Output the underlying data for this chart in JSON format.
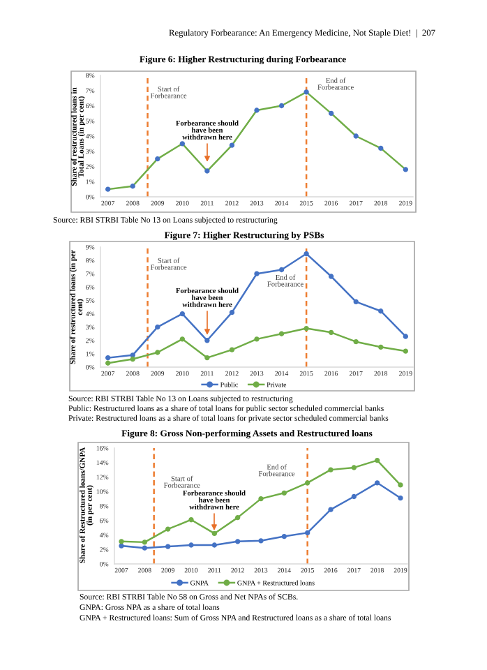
{
  "chart_data": [
    {
      "type": "line",
      "title": "Figure 6: Higher Restructuring during Forbearance",
      "subtitle": "Regulatory Forbearance: An Emergency Medicine, Not Staple Diet!  |  207",
      "ylabel": "Share of restructured loans in\nTotal Loans (in per cent)",
      "x": [
        2007,
        2008,
        2009,
        2010,
        2011,
        2012,
        2013,
        2014,
        2015,
        2016,
        2017,
        2018,
        2019
      ],
      "values": [
        0.5,
        0.7,
        2.5,
        3.5,
        1.7,
        3.4,
        5.7,
        6.0,
        6.9,
        5.5,
        4.0,
        3.2,
        1.8
      ],
      "color": "#70ad47",
      "colors": [
        "#4472c4",
        "#4472c4",
        "#4472c4",
        "#4472c4",
        "#4472c4",
        "#4472c4",
        "#4472c4",
        "#4472c4",
        "#4472c4",
        "#4472c4",
        "#4472c4",
        "#4472c4",
        "#4472c4"
      ],
      "xlim": [
        2006.7,
        2019.3
      ],
      "xticks": [
        2007,
        2008,
        2009,
        2010,
        2011,
        2012,
        2013,
        2014,
        2015,
        2016,
        2017,
        2018,
        2019
      ],
      "ylim": [
        0,
        8
      ],
      "yticks": [
        {
          "value": 0,
          "label": "0%"
        },
        {
          "value": 1,
          "label": "1%"
        },
        {
          "value": 2,
          "label": "2%"
        },
        {
          "value": 3,
          "label": "3%"
        },
        {
          "value": 4,
          "label": "4%"
        },
        {
          "value": 5,
          "label": "5%"
        },
        {
          "value": 6,
          "label": "6%"
        },
        {
          "value": 7,
          "label": "7%"
        },
        {
          "value": 8,
          "label": "8%"
        }
      ],
      "ref_lines": [
        {
          "axis": "x",
          "value": 2008.6,
          "label": "Start of\nForbearance",
          "color": "#ed7d31",
          "line_style": "dashed"
        },
        {
          "axis": "x",
          "value": 2015,
          "label": "End of\nForbearance",
          "color": "#ed7d31",
          "line_style": "dashed"
        }
      ],
      "annotations": [
        "Forbearance should\nhave been\nwithdrawn here",
        "Source: RBI STRBI Table No 13 on Loans subjected to restructuring"
      ],
      "marker": "circle",
      "line_style": "solid"
    },
    {
      "type": "line",
      "title": "Figure 7: Higher Restructuring by PSBs",
      "ylabel": "Share of restructured loans (in per\ncent)",
      "x": [
        2007,
        2008,
        2009,
        2010,
        2011,
        2012,
        2013,
        2014,
        2015,
        2016,
        2017,
        2018,
        2019
      ],
      "series": [
        {
          "name": "Public",
          "color": "#4472c4",
          "values": [
            0.7,
            0.9,
            3.0,
            4.0,
            2.0,
            4.1,
            7.0,
            7.3,
            8.5,
            6.8,
            4.9,
            4.2,
            2.3
          ]
        },
        {
          "name": "Private",
          "color": "#70ad47",
          "values": [
            0.3,
            0.6,
            1.1,
            2.1,
            0.7,
            1.3,
            2.1,
            2.5,
            2.9,
            2.6,
            1.9,
            1.5,
            1.2
          ]
        }
      ],
      "xlim": [
        2006.7,
        2019.3
      ],
      "xticks": [
        2007,
        2008,
        2009,
        2010,
        2011,
        2012,
        2013,
        2014,
        2015,
        2016,
        2017,
        2018,
        2019
      ],
      "ylim": [
        0,
        9
      ],
      "yticks": [
        {
          "value": 0,
          "label": "0%"
        },
        {
          "value": 1,
          "label": "1%"
        },
        {
          "value": 2,
          "label": "2%"
        },
        {
          "value": 3,
          "label": "3%"
        },
        {
          "value": 4,
          "label": "4%"
        },
        {
          "value": 5,
          "label": "5%"
        },
        {
          "value": 6,
          "label": "6%"
        },
        {
          "value": 7,
          "label": "7%"
        },
        {
          "value": 8,
          "label": "8%"
        },
        {
          "value": 9,
          "label": "9%"
        }
      ],
      "ref_lines": [
        {
          "axis": "x",
          "value": 2008.6,
          "label": "Start of\nForbearance",
          "color": "#ed7d31",
          "line_style": "dashed"
        },
        {
          "axis": "x",
          "value": 2015,
          "label": "End of\nForbearance",
          "color": "#ed7d31",
          "line_style": "dashed"
        }
      ],
      "annotations": [
        "Forbearance should\nhave been\nwithdrawn here",
        "Source: RBI STRBI Table No 13 on Loans subjected to restructuring",
        "Public: Restructured loans as a share of total loans for public sector scheduled commercial banks",
        "Private: Restructured loans as a share of total loans for private sector scheduled commercial banks"
      ],
      "legend": "bottom",
      "marker": "circle",
      "line_style": "solid"
    },
    {
      "type": "line",
      "title": "Figure 8: Gross Non-performing Assets and Restructured loans",
      "ylabel": "Share of Restructured loans/GNPA\n(in per cent)",
      "x": [
        2007,
        2008,
        2009,
        2010,
        2011,
        2012,
        2013,
        2014,
        2015,
        2016,
        2017,
        2018,
        2019
      ],
      "series": [
        {
          "name": "GNPA",
          "color": "#4472c4",
          "values": [
            2.5,
            2.2,
            2.4,
            2.6,
            2.6,
            3.1,
            3.2,
            3.8,
            4.3,
            7.5,
            9.3,
            11.2,
            9.1
          ]
        },
        {
          "name": "GNPA + Restructured loans",
          "color": "#70ad47",
          "values": [
            3.1,
            3.0,
            4.8,
            6.1,
            4.2,
            6.4,
            9.0,
            9.8,
            11.2,
            13.0,
            13.3,
            14.3,
            10.9
          ]
        }
      ],
      "xlim": [
        2006.7,
        2019.3
      ],
      "xticks": [
        2007,
        2008,
        2009,
        2010,
        2011,
        2012,
        2013,
        2014,
        2015,
        2016,
        2017,
        2018,
        2019
      ],
      "ylim": [
        0,
        16
      ],
      "yticks": [
        {
          "value": 0,
          "label": "0%"
        },
        {
          "value": 2,
          "label": "2%"
        },
        {
          "value": 4,
          "label": "4%"
        },
        {
          "value": 6,
          "label": "6%"
        },
        {
          "value": 8,
          "label": "8%"
        },
        {
          "value": 10,
          "label": "10%"
        },
        {
          "value": 12,
          "label": "12%"
        },
        {
          "value": 14,
          "label": "14%"
        },
        {
          "value": 16,
          "label": "16%"
        }
      ],
      "ref_lines": [
        {
          "axis": "x",
          "value": 2008.4,
          "label": "Start of\nForbearance",
          "color": "#ed7d31",
          "line_style": "dashed"
        },
        {
          "axis": "x",
          "value": 2015,
          "label": "End of\nForbearance",
          "color": "#ed7d31",
          "line_style": "dashed"
        }
      ],
      "annotations": [
        "Forbearance should\nhave been\nwithdrawn here",
        "Source: RBI STRBI Table No 58 on Gross and Net NPAs of SCBs.",
        "GNPA: Gross NPA as a share of total loans",
        "GNPA + Restructured loans: Sum of Gross NPA and Restructured loans as a share of total loans"
      ],
      "legend": "bottom",
      "marker": "circle",
      "line_style": "solid"
    }
  ]
}
